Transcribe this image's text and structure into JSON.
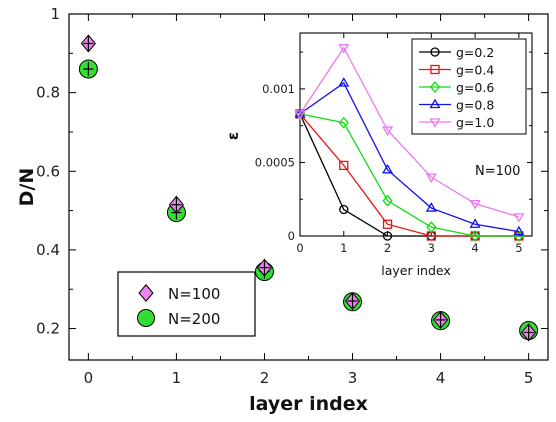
{
  "chart_data": [
    {
      "type": "scatter",
      "xlabel": "layer index",
      "ylabel": "D/N",
      "xlim": [
        -0.22,
        5.22
      ],
      "ylim": [
        0.12,
        1.0
      ],
      "xticks": [
        0,
        1,
        2,
        3,
        4,
        5
      ],
      "yticks": [
        0.2,
        0.4,
        0.6,
        0.8,
        1
      ],
      "ytick_labels": [
        "0.2",
        "0.4",
        "0.6",
        "0.8",
        "1"
      ],
      "legend_position": "bottom-left",
      "series": [
        {
          "name": "N=100",
          "marker": "diamond",
          "color": "#ee82ee",
          "x": [
            0,
            1,
            2,
            3,
            4,
            5
          ],
          "y": [
            0.925,
            0.515,
            0.355,
            0.27,
            0.222,
            0.19
          ]
        },
        {
          "name": "N=200",
          "marker": "circle",
          "color": "#33dd33",
          "x": [
            0,
            1,
            2,
            3,
            4,
            5
          ],
          "y": [
            0.86,
            0.495,
            0.345,
            0.268,
            0.22,
            0.195
          ]
        }
      ]
    },
    {
      "type": "line",
      "xlabel": "layer index",
      "ylabel": "ε",
      "xlim": [
        0,
        5.3
      ],
      "ylim": [
        0,
        0.00138
      ],
      "xticks": [
        0,
        1,
        2,
        3,
        4,
        5
      ],
      "yticks": [
        0,
        0.0005,
        0.001
      ],
      "ytick_labels": [
        "0",
        "0.0005",
        "0.001"
      ],
      "annotation": "N=100",
      "legend_position": "top-right",
      "x": [
        0,
        1,
        2,
        3,
        4,
        5
      ],
      "series": [
        {
          "name": "g=0.2",
          "marker": "circle",
          "color": "#000000",
          "values": [
            0.00083,
            0.00018,
            0.0,
            0.0,
            0.0,
            0.0
          ]
        },
        {
          "name": "g=0.4",
          "marker": "square",
          "color": "#ee1111",
          "values": [
            0.00083,
            0.00048,
            8e-05,
            0.0,
            0.0,
            0.0
          ]
        },
        {
          "name": "g=0.6",
          "marker": "diamond",
          "color": "#11dd11",
          "values": [
            0.00083,
            0.00077,
            0.00024,
            6e-05,
            0.0,
            0.0
          ]
        },
        {
          "name": "g=0.8",
          "marker": "triangle-up",
          "color": "#1111ee",
          "values": [
            0.00083,
            0.00104,
            0.00045,
            0.00019,
            8e-05,
            3e-05
          ]
        },
        {
          "name": "g=1.0",
          "marker": "triangle-down",
          "color": "#ee77ee",
          "values": [
            0.00083,
            0.00128,
            0.00072,
            0.0004,
            0.00022,
            0.00013
          ]
        }
      ]
    }
  ]
}
